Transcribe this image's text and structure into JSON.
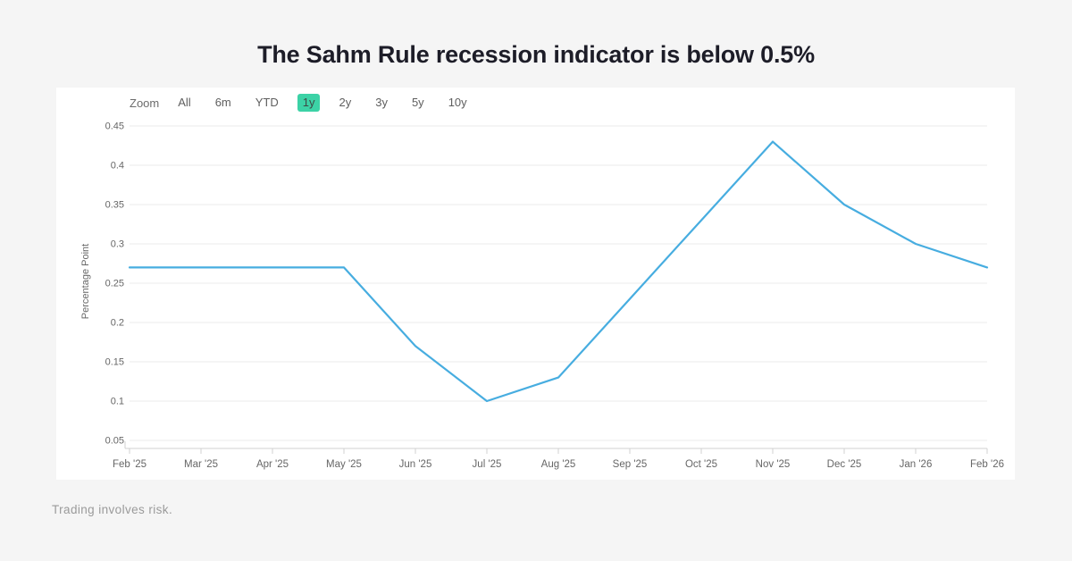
{
  "title": "The Sahm Rule recession indicator is below 0.5%",
  "toolbar": {
    "zoom_label": "Zoom",
    "buttons": [
      "All",
      "6m",
      "YTD",
      "1y",
      "2y",
      "3y",
      "5y",
      "10y"
    ],
    "selected": "1y"
  },
  "chart_data": {
    "type": "line",
    "x": [
      "Feb '25",
      "Mar '25",
      "Apr '25",
      "May '25",
      "Jun '25",
      "Jul '25",
      "Aug '25",
      "Sep '25",
      "Oct '25",
      "Nov '25",
      "Dec '25",
      "Jan '26",
      "Feb '26"
    ],
    "series": [
      {
        "name": "Sahm Rule recession indicator",
        "values": [
          0.27,
          0.27,
          0.27,
          0.27,
          0.17,
          0.1,
          0.13,
          0.23,
          0.33,
          0.43,
          0.35,
          0.3,
          0.27
        ]
      }
    ],
    "title": "",
    "xlabel": "",
    "ylabel": "Percentage Point",
    "ytick_labels": [
      "0.05",
      "0.1",
      "0.15",
      "0.2",
      "0.25",
      "0.3",
      "0.35",
      "0.4",
      "0.45"
    ],
    "yticks": [
      0.05,
      0.1,
      0.15,
      0.2,
      0.25,
      0.3,
      0.35,
      0.4,
      0.45
    ],
    "ylim": [
      0.04,
      0.46
    ],
    "grid": true,
    "legend": false,
    "line_color": "#47ade0",
    "grid_color": "#ebebeb",
    "axis_color": "#d0d0d0",
    "tick_label_color": "#666666"
  },
  "footer": "Trading involves risk.",
  "colors": {
    "accent_selected_range": "#3cd2a6",
    "background": "#f5f5f5",
    "panel": "#ffffff",
    "title_text": "#1d1d28",
    "footer_text": "#9a9a9a"
  }
}
